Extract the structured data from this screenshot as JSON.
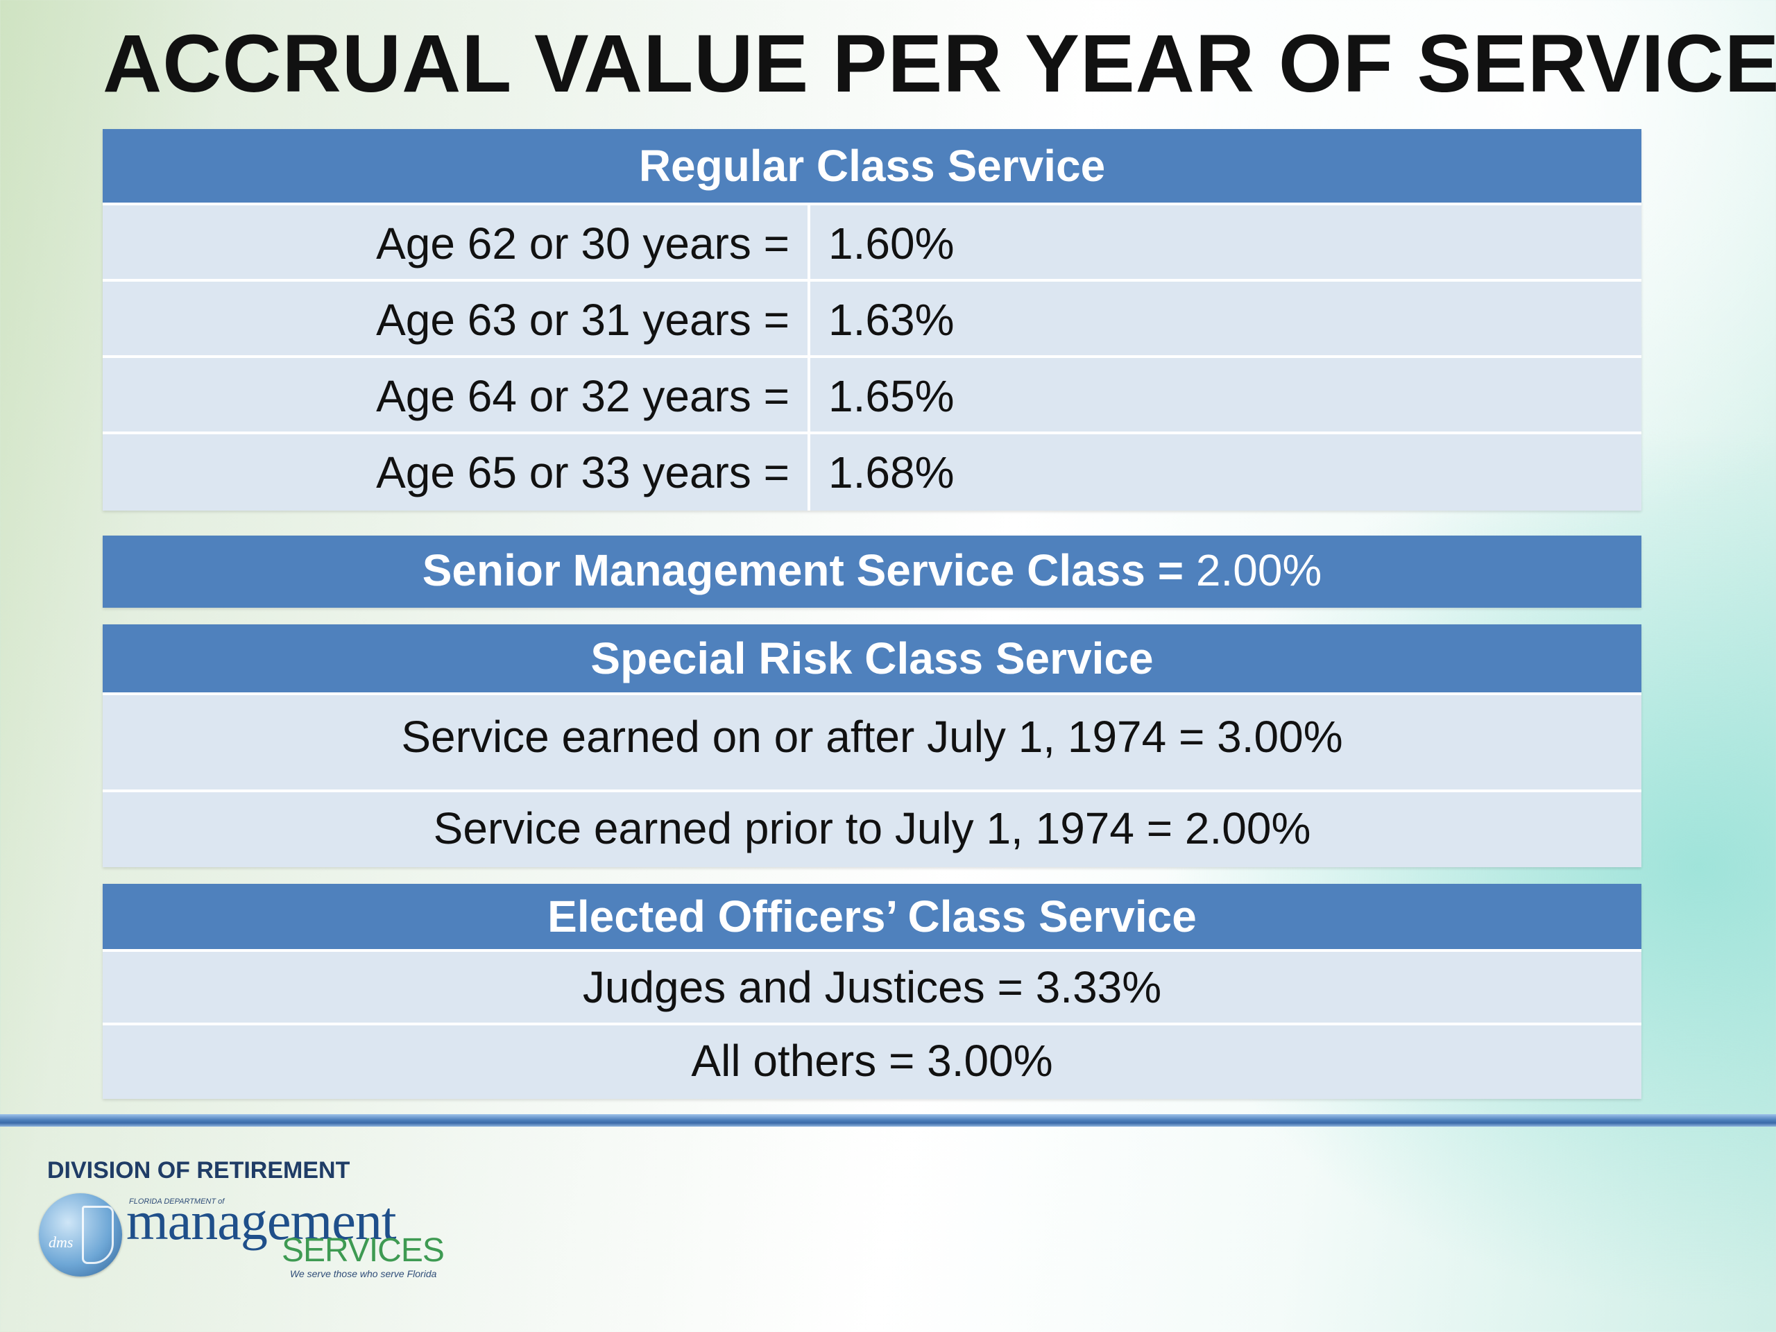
{
  "title": "ACCRUAL VALUE PER YEAR OF SERVICE",
  "regular": {
    "header": "Regular Class Service",
    "rows": [
      {
        "label": "Age 62 or 30 years =",
        "value": "1.60%"
      },
      {
        "label": "Age 63 or 31 years =",
        "value": "1.63%"
      },
      {
        "label": "Age 64 or 32 years =",
        "value": "1.65%"
      },
      {
        "label": "Age 65 or 33 years =",
        "value": "1.68%"
      }
    ]
  },
  "senior": {
    "label": "Senior Management Service Class =",
    "value": "2.00%"
  },
  "special": {
    "header": "Special Risk Class Service",
    "rows": [
      "Service earned on or after July 1, 1974  = 3.00%",
      "Service earned prior to July 1, 1974  = 2.00%"
    ]
  },
  "elected": {
    "header": "Elected Officers’ Class Service",
    "rows": [
      "Judges and Justices = 3.33%",
      "All others = 3.00%"
    ]
  },
  "logo": {
    "top_text": "DIVISION OF RETIREMENT",
    "globe_text": "dms",
    "small_text": "FLORIDA DEPARTMENT of",
    "main_text": "management",
    "sub_text": "SERVICES",
    "tagline": "We serve those who serve Florida"
  },
  "colors": {
    "header_blue": "#4f81bd",
    "row_fill": "#dce6f1",
    "divider": "#4f81bd"
  }
}
